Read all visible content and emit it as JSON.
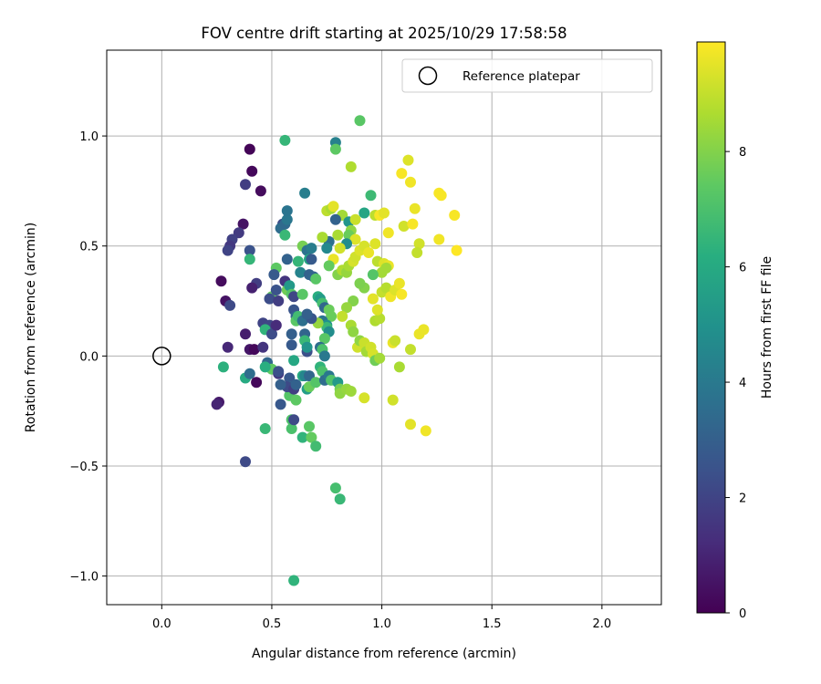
{
  "chart_data": {
    "type": "scatter",
    "title": "FOV centre drift starting at 2025/10/29 17:58:58",
    "xlabel": "Angular distance from reference (arcmin)",
    "ylabel": "Rotation from reference (arcmin)",
    "xlim": [
      -0.25,
      2.27
    ],
    "ylim": [
      -1.13,
      1.39
    ],
    "x_ticks": [
      0.0,
      0.5,
      1.0,
      1.5,
      2.0
    ],
    "x_tick_labels": [
      "0.0",
      "0.5",
      "1.0",
      "1.5",
      "2.0"
    ],
    "y_ticks": [
      -1.0,
      -0.5,
      0.0,
      0.5,
      1.0
    ],
    "y_tick_labels": [
      "−1.0",
      "−0.5",
      "0.0",
      "0.5",
      "1.0"
    ],
    "grid": true,
    "colormap": "viridis",
    "colorbar": {
      "label": "Hours from first FF file",
      "range": [
        0,
        9.9
      ],
      "ticks": [
        0,
        2,
        4,
        6,
        8
      ],
      "tick_labels": [
        "0",
        "2",
        "4",
        "6",
        "8"
      ]
    },
    "reference": {
      "x": 0.0,
      "y": 0.0,
      "label": "Reference platepar"
    },
    "legend_location": "top-right",
    "points": [
      [
        0.4,
        0.94,
        0.1
      ],
      [
        0.41,
        0.84,
        0.2
      ],
      [
        0.45,
        0.75,
        0.3
      ],
      [
        0.38,
        0.78,
        1.8
      ],
      [
        0.37,
        0.6,
        0.5
      ],
      [
        0.35,
        0.56,
        1.7
      ],
      [
        0.32,
        0.53,
        1.9
      ],
      [
        0.31,
        0.5,
        1.6
      ],
      [
        0.3,
        0.48,
        2.0
      ],
      [
        0.4,
        0.48,
        2.5
      ],
      [
        0.4,
        0.44,
        6.5
      ],
      [
        0.27,
        0.34,
        0.3
      ],
      [
        0.43,
        0.33,
        1.8
      ],
      [
        0.41,
        0.31,
        0.9
      ],
      [
        0.29,
        0.25,
        0.5
      ],
      [
        0.31,
        0.23,
        2.2
      ],
      [
        0.3,
        0.04,
        1.1
      ],
      [
        0.38,
        0.1,
        0.8
      ],
      [
        0.4,
        0.03,
        0.6
      ],
      [
        0.42,
        0.03,
        0.2
      ],
      [
        0.46,
        0.04,
        1.5
      ],
      [
        0.46,
        0.15,
        2.0
      ],
      [
        0.49,
        0.14,
        2.1
      ],
      [
        0.47,
        0.12,
        6.4
      ],
      [
        0.5,
        0.1,
        2.3
      ],
      [
        0.52,
        0.14,
        1.2
      ],
      [
        0.26,
        -0.21,
        0.7
      ],
      [
        0.25,
        -0.22,
        1.0
      ],
      [
        0.28,
        -0.05,
        6.3
      ],
      [
        0.38,
        -0.1,
        6.0
      ],
      [
        0.4,
        -0.08,
        3.5
      ],
      [
        0.43,
        -0.12,
        0.2
      ],
      [
        0.47,
        -0.33,
        6.6
      ],
      [
        0.38,
        -0.48,
        2.2
      ],
      [
        0.48,
        -0.03,
        3.3
      ],
      [
        0.5,
        -0.06,
        7.4
      ],
      [
        0.47,
        -0.05,
        6.2
      ],
      [
        0.52,
        0.4,
        7.4
      ],
      [
        0.51,
        0.37,
        2.8
      ],
      [
        0.5,
        0.27,
        7.5
      ],
      [
        0.49,
        0.26,
        2.3
      ],
      [
        0.52,
        0.3,
        2.5
      ],
      [
        0.53,
        0.25,
        1.8
      ],
      [
        0.55,
        0.6,
        2.3
      ],
      [
        0.54,
        0.58,
        3.5
      ],
      [
        0.56,
        0.6,
        3.4
      ],
      [
        0.57,
        0.62,
        3.9
      ],
      [
        0.57,
        0.66,
        3.8
      ],
      [
        0.56,
        0.98,
        6.5
      ],
      [
        0.56,
        0.55,
        6.6
      ],
      [
        0.57,
        0.44,
        3.1
      ],
      [
        0.56,
        0.34,
        1.5
      ],
      [
        0.57,
        0.3,
        7.7
      ],
      [
        0.58,
        0.32,
        5.3
      ],
      [
        0.59,
        0.28,
        7.2
      ],
      [
        0.6,
        0.27,
        2.1
      ],
      [
        0.6,
        0.21,
        2.6
      ],
      [
        0.61,
        0.18,
        3.3
      ],
      [
        0.61,
        0.16,
        7.3
      ],
      [
        0.62,
        0.18,
        6.8
      ],
      [
        0.64,
        0.16,
        3.6
      ],
      [
        0.64,
        0.28,
        7.3
      ],
      [
        0.62,
        0.43,
        6.5
      ],
      [
        0.63,
        0.38,
        4.4
      ],
      [
        0.65,
        0.74,
        4.2
      ],
      [
        0.64,
        0.5,
        7.8
      ],
      [
        0.66,
        0.48,
        3.7
      ],
      [
        0.68,
        0.49,
        4.1
      ],
      [
        0.67,
        0.44,
        5.9
      ],
      [
        0.68,
        0.44,
        2.8
      ],
      [
        0.67,
        0.37,
        3.1
      ],
      [
        0.69,
        0.36,
        3.2
      ],
      [
        0.7,
        0.35,
        7.3
      ],
      [
        0.71,
        0.27,
        6.2
      ],
      [
        0.72,
        0.26,
        5.4
      ],
      [
        0.73,
        0.24,
        6.9
      ],
      [
        0.74,
        0.22,
        3.3
      ],
      [
        0.76,
        0.21,
        7.6
      ],
      [
        0.77,
        0.18,
        7.6
      ],
      [
        0.73,
        0.16,
        3.8
      ],
      [
        0.75,
        0.14,
        5.0
      ],
      [
        0.75,
        0.13,
        6.6
      ],
      [
        0.76,
        0.11,
        4.8
      ],
      [
        0.74,
        0.08,
        7.3
      ],
      [
        0.71,
        0.15,
        8.3
      ],
      [
        0.68,
        0.17,
        2.6
      ],
      [
        0.66,
        0.19,
        3.0
      ],
      [
        0.65,
        0.1,
        3.2
      ],
      [
        0.65,
        0.07,
        6.6
      ],
      [
        0.66,
        0.02,
        2.4
      ],
      [
        0.66,
        0.04,
        5.1
      ],
      [
        0.72,
        0.04,
        3.5
      ],
      [
        0.73,
        0.03,
        7.0
      ],
      [
        0.74,
        0.0,
        4.0
      ],
      [
        0.59,
        0.1,
        3.0
      ],
      [
        0.59,
        0.05,
        2.8
      ],
      [
        0.6,
        -0.02,
        5.9
      ],
      [
        0.58,
        -0.1,
        2.7
      ],
      [
        0.58,
        -0.14,
        3.4
      ],
      [
        0.58,
        -0.18,
        7.2
      ],
      [
        0.57,
        -0.14,
        2.2
      ],
      [
        0.6,
        -0.15,
        1.8
      ],
      [
        0.61,
        -0.13,
        3.1
      ],
      [
        0.61,
        -0.2,
        7.4
      ],
      [
        0.59,
        -0.29,
        7.1
      ],
      [
        0.59,
        -0.33,
        7.0
      ],
      [
        0.6,
        -0.29,
        2.2
      ],
      [
        0.54,
        -0.22,
        2.7
      ],
      [
        0.54,
        -0.13,
        3.0
      ],
      [
        0.53,
        -0.08,
        1.6
      ],
      [
        0.53,
        -0.07,
        2.4
      ],
      [
        0.64,
        -0.09,
        6.1
      ],
      [
        0.65,
        -0.09,
        4.5
      ],
      [
        0.66,
        -0.15,
        5.5
      ],
      [
        0.67,
        -0.14,
        7.6
      ],
      [
        0.67,
        -0.09,
        3.3
      ],
      [
        0.7,
        -0.12,
        7.2
      ],
      [
        0.72,
        -0.05,
        6.4
      ],
      [
        0.73,
        -0.07,
        7.0
      ],
      [
        0.74,
        -0.11,
        3.5
      ],
      [
        0.76,
        -0.09,
        3.9
      ],
      [
        0.77,
        -0.11,
        7.1
      ],
      [
        0.8,
        -0.12,
        5.3
      ],
      [
        0.81,
        -0.15,
        7.8
      ],
      [
        0.81,
        -0.17,
        8.2
      ],
      [
        0.84,
        -0.15,
        8.3
      ],
      [
        0.86,
        -0.16,
        8.4
      ],
      [
        0.92,
        -0.19,
        9.3
      ],
      [
        0.64,
        -0.37,
        6.4
      ],
      [
        0.67,
        -0.32,
        7.3
      ],
      [
        0.68,
        -0.37,
        7.5
      ],
      [
        0.7,
        -0.41,
        6.8
      ],
      [
        0.6,
        -1.02,
        6.4
      ],
      [
        0.79,
        -0.6,
        6.9
      ],
      [
        0.81,
        -0.65,
        6.6
      ],
      [
        0.9,
        1.07,
        7.3
      ],
      [
        0.79,
        0.97,
        4.3
      ],
      [
        0.79,
        0.94,
        7.4
      ],
      [
        0.86,
        0.86,
        8.7
      ],
      [
        0.75,
        0.66,
        8.9
      ],
      [
        0.77,
        0.67,
        8.6
      ],
      [
        0.78,
        0.68,
        9.5
      ],
      [
        0.82,
        0.64,
        8.5
      ],
      [
        0.85,
        0.61,
        5.1
      ],
      [
        0.88,
        0.62,
        9.1
      ],
      [
        0.86,
        0.57,
        8.2
      ],
      [
        0.85,
        0.55,
        7.6
      ],
      [
        0.88,
        0.53,
        9.4
      ],
      [
        0.84,
        0.51,
        4.8
      ],
      [
        0.81,
        0.49,
        9.2
      ],
      [
        0.79,
        0.62,
        3.1
      ],
      [
        0.8,
        0.55,
        8.6
      ],
      [
        0.76,
        0.52,
        3.6
      ],
      [
        0.73,
        0.54,
        8.6
      ],
      [
        0.75,
        0.49,
        4.6
      ],
      [
        0.78,
        0.44,
        9.6
      ],
      [
        0.76,
        0.41,
        7.5
      ],
      [
        0.8,
        0.37,
        8.0
      ],
      [
        0.82,
        0.39,
        8.7
      ],
      [
        0.84,
        0.38,
        8.3
      ],
      [
        0.85,
        0.41,
        8.6
      ],
      [
        0.87,
        0.43,
        9.3
      ],
      [
        0.88,
        0.45,
        9.2
      ],
      [
        0.9,
        0.48,
        9.4
      ],
      [
        0.92,
        0.5,
        9.3
      ],
      [
        0.94,
        0.47,
        9.6
      ],
      [
        0.92,
        0.65,
        5.8
      ],
      [
        0.95,
        0.73,
        6.7
      ],
      [
        0.97,
        0.64,
        8.9
      ],
      [
        0.99,
        0.64,
        9.8
      ],
      [
        1.01,
        0.65,
        9.5
      ],
      [
        1.03,
        0.56,
        9.7
      ],
      [
        0.97,
        0.51,
        9.4
      ],
      [
        0.98,
        0.43,
        8.9
      ],
      [
        1.01,
        0.42,
        9.4
      ],
      [
        1.03,
        0.41,
        9.6
      ],
      [
        1.02,
        0.4,
        8.5
      ],
      [
        1.0,
        0.38,
        8.5
      ],
      [
        0.96,
        0.37,
        7.2
      ],
      [
        0.92,
        0.31,
        8.0
      ],
      [
        0.9,
        0.33,
        7.9
      ],
      [
        0.87,
        0.25,
        8.0
      ],
      [
        0.84,
        0.22,
        8.3
      ],
      [
        0.82,
        0.18,
        9.0
      ],
      [
        0.86,
        0.14,
        8.6
      ],
      [
        0.87,
        0.11,
        8.2
      ],
      [
        0.89,
        0.04,
        9.2
      ],
      [
        0.9,
        0.07,
        8.2
      ],
      [
        0.92,
        0.06,
        9.1
      ],
      [
        0.93,
        0.02,
        8.5
      ],
      [
        0.95,
        0.04,
        9.2
      ],
      [
        0.96,
        0.01,
        9.3
      ],
      [
        0.97,
        -0.02,
        7.7
      ],
      [
        0.99,
        -0.01,
        8.5
      ],
      [
        0.97,
        0.16,
        8.7
      ],
      [
        0.99,
        0.17,
        8.8
      ],
      [
        0.98,
        0.21,
        9.4
      ],
      [
        0.96,
        0.26,
        9.5
      ],
      [
        1.0,
        0.29,
        9.0
      ],
      [
        1.02,
        0.31,
        8.8
      ],
      [
        1.04,
        0.27,
        9.7
      ],
      [
        1.06,
        0.3,
        9.4
      ],
      [
        1.08,
        0.33,
        9.6
      ],
      [
        1.09,
        0.28,
        9.8
      ],
      [
        1.05,
        0.06,
        9.6
      ],
      [
        1.06,
        0.07,
        9.1
      ],
      [
        1.08,
        -0.05,
        8.6
      ],
      [
        1.05,
        -0.2,
        9.2
      ],
      [
        1.1,
        0.59,
        9.2
      ],
      [
        1.12,
        0.89,
        9.4
      ],
      [
        1.13,
        0.79,
        9.7
      ],
      [
        1.09,
        0.83,
        9.8
      ],
      [
        1.15,
        0.67,
        9.6
      ],
      [
        1.14,
        0.6,
        9.8
      ],
      [
        1.17,
        0.51,
        9.2
      ],
      [
        1.16,
        0.47,
        9.0
      ],
      [
        1.13,
        0.03,
        9.0
      ],
      [
        1.17,
        0.1,
        9.6
      ],
      [
        1.19,
        0.12,
        9.6
      ],
      [
        1.13,
        -0.31,
        9.5
      ],
      [
        1.2,
        -0.34,
        9.7
      ],
      [
        1.27,
        0.73,
        9.8
      ],
      [
        1.26,
        0.74,
        9.8
      ],
      [
        1.26,
        0.53,
        9.7
      ],
      [
        1.33,
        0.64,
        9.8
      ],
      [
        1.34,
        0.48,
        9.9
      ]
    ]
  }
}
